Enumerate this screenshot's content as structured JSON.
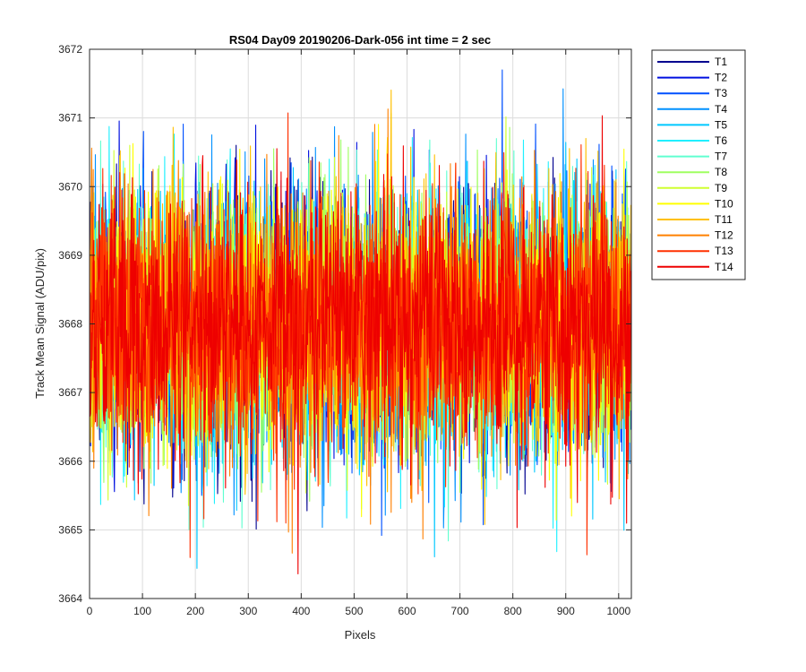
{
  "chart_data": {
    "type": "line",
    "title": "RS04 Day09 20190206-Dark-056 int time = 2 sec",
    "xlabel": "Pixels",
    "ylabel": "Track Mean Signal (ADU/pix)",
    "xlim": [
      0,
      1024
    ],
    "ylim": [
      3664,
      3672
    ],
    "xticks": [
      0,
      100,
      200,
      300,
      400,
      500,
      600,
      700,
      800,
      900,
      1000
    ],
    "yticks": [
      3664,
      3665,
      3666,
      3667,
      3668,
      3669,
      3670,
      3671,
      3672
    ],
    "grid": true,
    "legend_position": "outside-top-right",
    "n_points": 1024,
    "noise_center": 3668.0,
    "noise_sigma": 1.0,
    "series": [
      {
        "name": "T1",
        "color": "#00008f"
      },
      {
        "name": "T2",
        "color": "#0010e0"
      },
      {
        "name": "T3",
        "color": "#0050ff"
      },
      {
        "name": "T4",
        "color": "#0090ff"
      },
      {
        "name": "T5",
        "color": "#00c8ff"
      },
      {
        "name": "T6",
        "color": "#20f0ff"
      },
      {
        "name": "T7",
        "color": "#60ffd0"
      },
      {
        "name": "T8",
        "color": "#9fff60"
      },
      {
        "name": "T9",
        "color": "#d0ff30"
      },
      {
        "name": "T10",
        "color": "#ffff00"
      },
      {
        "name": "T11",
        "color": "#ffc000"
      },
      {
        "name": "T12",
        "color": "#ff8000"
      },
      {
        "name": "T13",
        "color": "#ff3000"
      },
      {
        "name": "T14",
        "color": "#ee0000"
      }
    ]
  }
}
